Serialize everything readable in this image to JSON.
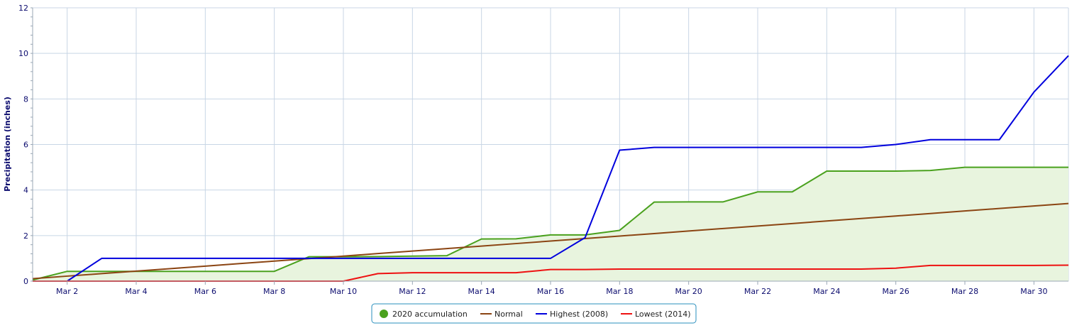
{
  "chart_data": {
    "type": "line",
    "title": "",
    "xlabel": "",
    "ylabel": "Precipitation (inches)",
    "ylim": [
      0,
      12
    ],
    "yticks": [
      0,
      2,
      4,
      6,
      8,
      10,
      12
    ],
    "x": [
      1,
      2,
      3,
      4,
      5,
      6,
      7,
      8,
      9,
      10,
      11,
      12,
      13,
      14,
      15,
      16,
      17,
      18,
      19,
      20,
      21,
      22,
      23,
      24,
      25,
      26,
      27,
      28,
      29,
      30,
      31
    ],
    "xticks": [
      {
        "day": 2,
        "label": "Mar 2"
      },
      {
        "day": 4,
        "label": "Mar 4"
      },
      {
        "day": 6,
        "label": "Mar 6"
      },
      {
        "day": 8,
        "label": "Mar 8"
      },
      {
        "day": 10,
        "label": "Mar 10"
      },
      {
        "day": 12,
        "label": "Mar 12"
      },
      {
        "day": 14,
        "label": "Mar 14"
      },
      {
        "day": 16,
        "label": "Mar 16"
      },
      {
        "day": 18,
        "label": "Mar 18"
      },
      {
        "day": 20,
        "label": "Mar 20"
      },
      {
        "day": 22,
        "label": "Mar 22"
      },
      {
        "day": 24,
        "label": "Mar 24"
      },
      {
        "day": 26,
        "label": "Mar 26"
      },
      {
        "day": 28,
        "label": "Mar 28"
      },
      {
        "day": 30,
        "label": "Mar 30"
      }
    ],
    "grid": true,
    "legend_position": "bottom-center",
    "series": [
      {
        "name": "2020 accumulation",
        "color": "#4aa11e",
        "fill": "#e8f4de",
        "area": true,
        "marker": "circle",
        "values": [
          0.05,
          0.43,
          0.43,
          0.43,
          0.43,
          0.43,
          0.43,
          0.43,
          1.07,
          1.07,
          1.08,
          1.1,
          1.12,
          1.85,
          1.86,
          2.03,
          2.03,
          2.23,
          3.47,
          3.48,
          3.48,
          3.92,
          3.92,
          4.83,
          4.83,
          4.83,
          4.86,
          5.0,
          5.0,
          5.0,
          5.0
        ]
      },
      {
        "name": "Normal",
        "color": "#8b4513",
        "values": [
          0.11,
          0.22,
          0.33,
          0.44,
          0.55,
          0.66,
          0.77,
          0.88,
          0.99,
          1.1,
          1.21,
          1.32,
          1.43,
          1.54,
          1.65,
          1.76,
          1.87,
          1.98,
          2.09,
          2.2,
          2.31,
          2.42,
          2.53,
          2.64,
          2.75,
          2.86,
          2.97,
          3.08,
          3.19,
          3.3,
          3.41
        ]
      },
      {
        "name": "Highest (2008)",
        "color": "#0000dd",
        "values": [
          null,
          0.0,
          1.0,
          1.0,
          1.0,
          1.0,
          1.0,
          1.0,
          1.0,
          1.0,
          1.0,
          1.0,
          1.0,
          1.0,
          1.0,
          1.0,
          1.91,
          5.75,
          5.87,
          5.87,
          5.87,
          5.87,
          5.87,
          5.87,
          5.87,
          6.0,
          6.21,
          6.21,
          6.21,
          8.3,
          9.9
        ]
      },
      {
        "name": "Lowest (2014)",
        "color": "#ee1111",
        "values": [
          0.0,
          0.0,
          0.0,
          0.0,
          0.0,
          0.0,
          0.0,
          0.0,
          0.0,
          0.0,
          0.33,
          0.37,
          0.37,
          0.37,
          0.37,
          0.51,
          0.51,
          0.53,
          0.53,
          0.53,
          0.53,
          0.53,
          0.53,
          0.53,
          0.53,
          0.57,
          0.69,
          0.69,
          0.69,
          0.69,
          0.7
        ]
      }
    ]
  }
}
